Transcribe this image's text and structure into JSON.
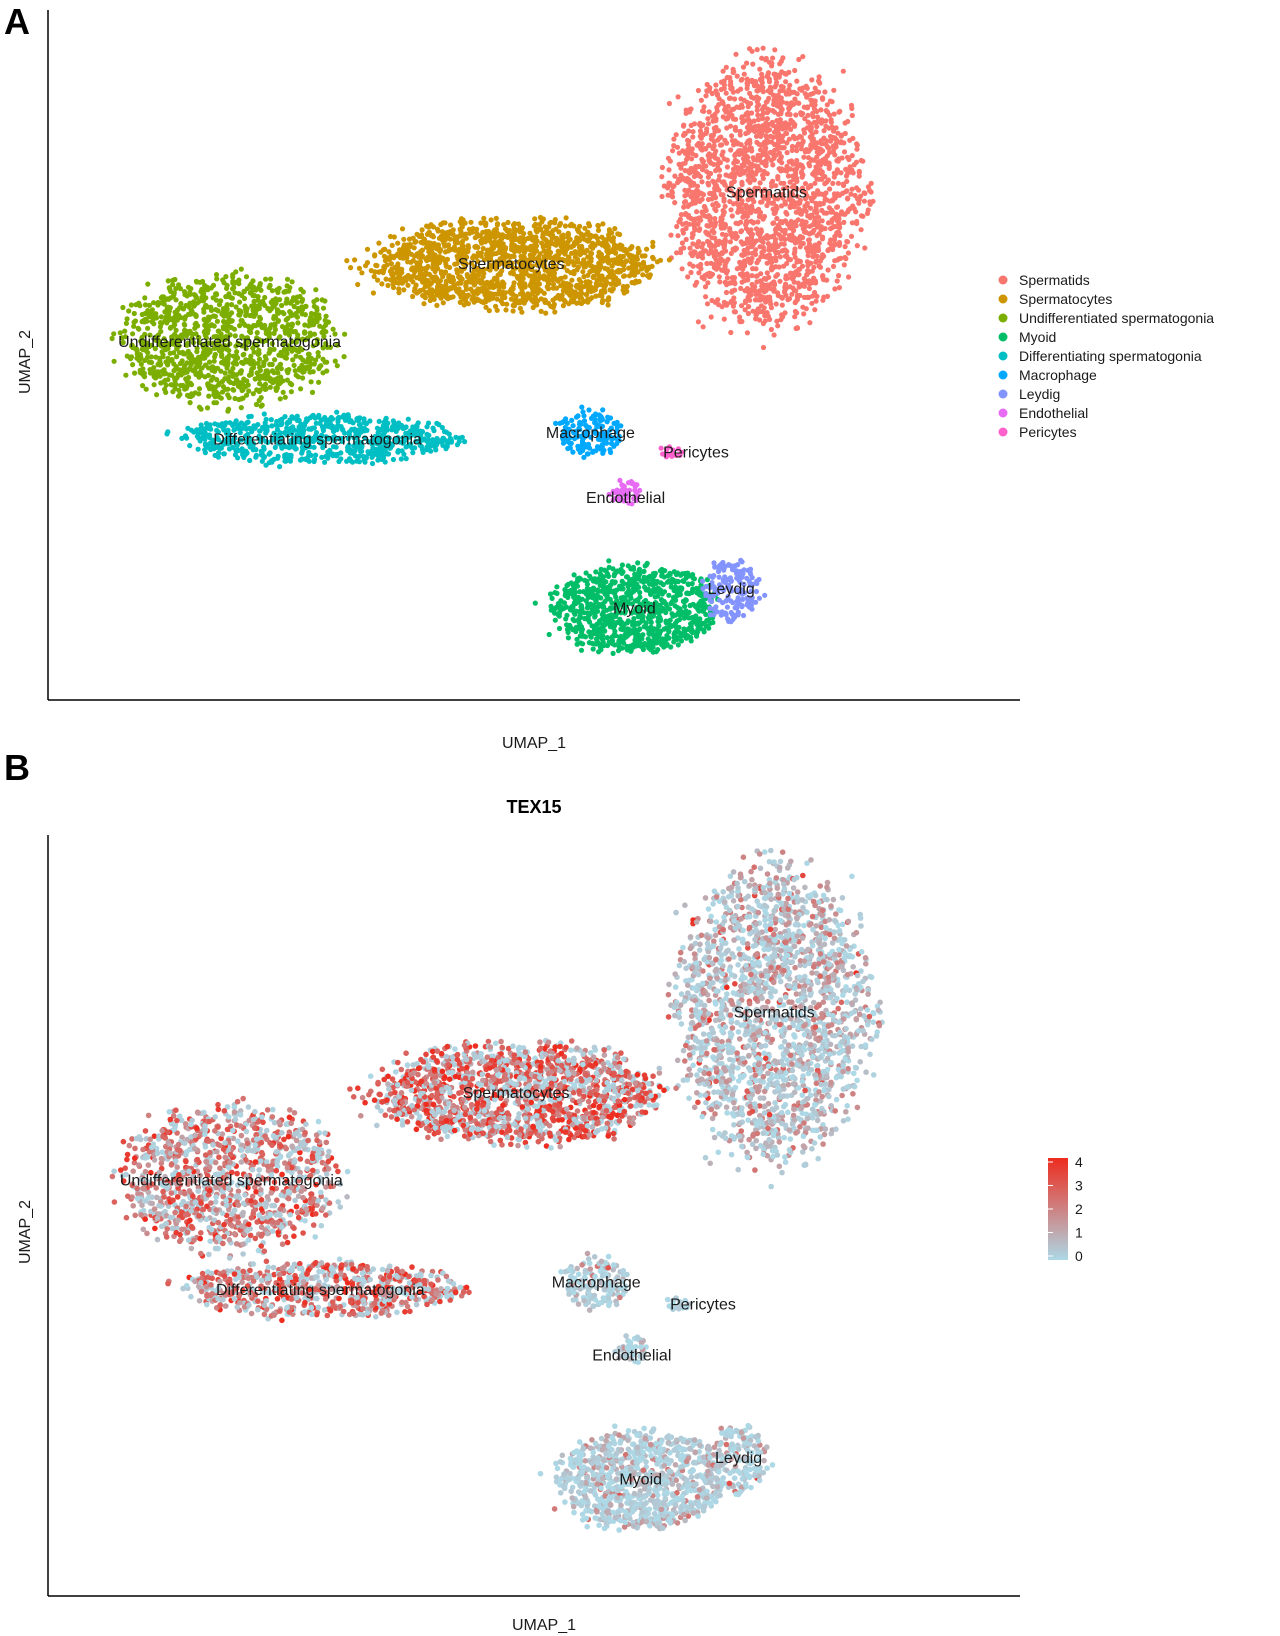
{
  "panels": {
    "a_letter": "A",
    "b_letter": "B"
  },
  "chart_data": [
    {
      "type": "scatter",
      "title": "",
      "xlabel": "UMAP_1",
      "ylabel": "UMAP_2",
      "xlim": [
        0,
        100
      ],
      "ylim": [
        0,
        100
      ],
      "legend": "right",
      "clusters": [
        {
          "name": "Spermatids",
          "color": "#F8766D",
          "label": "Spermatids",
          "center": [
            78,
            75
          ],
          "spread": [
            9,
            16
          ],
          "count": 2000
        },
        {
          "name": "Spermatocytes",
          "color": "#CD9600",
          "label": "Spermatocytes",
          "center": [
            49,
            64
          ],
          "spread": [
            13,
            5.5
          ],
          "count": 1500
        },
        {
          "name": "Undifferentiated spermatogonia",
          "color": "#7CAE00",
          "label": "Undifferentiated spermatogonia",
          "center": [
            17,
            52
          ],
          "spread": [
            10,
            8
          ],
          "count": 1100
        },
        {
          "name": "Myoid",
          "color": "#00BE67",
          "label": "Myoid",
          "center": [
            63,
            11
          ],
          "spread": [
            7.5,
            5.5
          ],
          "count": 900
        },
        {
          "name": "Differentiating spermatogonia",
          "color": "#00BFC4",
          "label": "Differentiating spermatogonia",
          "center": [
            27,
            37
          ],
          "spread": [
            13,
            3
          ],
          "count": 700
        },
        {
          "name": "Macrophage",
          "color": "#00A9FF",
          "label": "Macrophage",
          "center": [
            58,
            38
          ],
          "spread": [
            3,
            3
          ],
          "count": 150
        },
        {
          "name": "Leydig",
          "color": "#8494FF",
          "label": "Leydig",
          "center": [
            74,
            14
          ],
          "spread": [
            2.5,
            4
          ],
          "count": 160
        },
        {
          "name": "Endothelial",
          "color": "#E76BF3",
          "label": "Endothelial",
          "center": [
            62,
            29
          ],
          "spread": [
            1.6,
            1.6
          ],
          "count": 45
        },
        {
          "name": "Pericytes",
          "color": "#FF61CC",
          "label": "Pericytes",
          "center": [
            67,
            35
          ],
          "spread": [
            1.2,
            0.8
          ],
          "count": 18
        }
      ],
      "legend_entries": [
        "Spermatids",
        "Spermatocytes",
        "Undifferentiated spermatogonia",
        "Myoid",
        "Differentiating spermatogonia",
        "Macrophage",
        "Leydig",
        "Endothelial",
        "Pericytes"
      ]
    },
    {
      "type": "scatter",
      "title": "TEX15",
      "xlabel": "UMAP_1",
      "ylabel": "UMAP_2",
      "xlim": [
        0,
        100
      ],
      "ylim": [
        0,
        100
      ],
      "legend": "right",
      "colorbar": {
        "min": 0,
        "max": 4,
        "ticks": [
          "4",
          "3",
          "2",
          "1",
          "0"
        ],
        "low_color": "#ADD8E6",
        "high_color": "#EE2C1F"
      },
      "expression": [
        {
          "cluster": "Spermatids",
          "mean_level": 1.0
        },
        {
          "cluster": "Spermatocytes",
          "mean_level": 2.8
        },
        {
          "cluster": "Undifferentiated spermatogonia",
          "mean_level": 2.3
        },
        {
          "cluster": "Myoid",
          "mean_level": 0.3
        },
        {
          "cluster": "Differentiating spermatogonia",
          "mean_level": 2.6
        },
        {
          "cluster": "Macrophage",
          "mean_level": 0.1
        },
        {
          "cluster": "Leydig",
          "mean_level": 0.4
        },
        {
          "cluster": "Endothelial",
          "mean_level": 0.1
        },
        {
          "cluster": "Pericytes",
          "mean_level": 0.1
        }
      ],
      "labels": [
        "Spermatids",
        "Spermatocytes",
        "Undifferentiated spermatogonia",
        "Differentiating spermatogonia",
        "Macrophage",
        "Pericytes",
        "Endothelial",
        "Myoid",
        "Leydig"
      ]
    }
  ]
}
